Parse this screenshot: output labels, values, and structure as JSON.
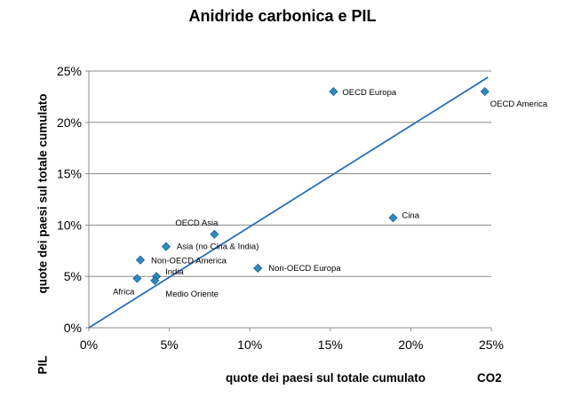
{
  "chart_data": {
    "type": "scatter",
    "title": "Anidride carbonica e PIL",
    "xlabel": "quote dei paesi sul totale cumulato",
    "xlabel_suffix": "CO2",
    "ylabel": "quote dei paesi sul totale cumulato",
    "ylabel_suffix": "PIL",
    "xlim": [
      0,
      25
    ],
    "ylim": [
      0,
      25
    ],
    "x_ticks": [
      "0%",
      "5%",
      "10%",
      "15%",
      "20%",
      "25%"
    ],
    "y_ticks": [
      "0%",
      "5%",
      "10%",
      "15%",
      "20%",
      "25%"
    ],
    "grid": "horizontal",
    "legend": "none",
    "trendline": {
      "type": "linear",
      "from": [
        0,
        0
      ],
      "to": [
        24.8,
        24.4
      ],
      "color": "#2a6ebb"
    },
    "marker_color": "#2e8bc0",
    "points": [
      {
        "label": "OECD Europa",
        "x": 15.2,
        "y": 23.0
      },
      {
        "label": "OECD America",
        "x": 24.6,
        "y": 23.0
      },
      {
        "label": "Cina",
        "x": 18.9,
        "y": 10.7
      },
      {
        "label": "OECD Asia",
        "x": 7.8,
        "y": 9.1
      },
      {
        "label": "Asia (no Cina & India)",
        "x": 4.8,
        "y": 7.9
      },
      {
        "label": "Non-OECD America",
        "x": 3.2,
        "y": 6.6
      },
      {
        "label": "Non-OECD Europa",
        "x": 10.5,
        "y": 5.8
      },
      {
        "label": "India",
        "x": 4.2,
        "y": 5.0
      },
      {
        "label": "Africa",
        "x": 3.0,
        "y": 4.8
      },
      {
        "label": "Medio Oriente",
        "x": 4.1,
        "y": 4.6
      }
    ]
  }
}
